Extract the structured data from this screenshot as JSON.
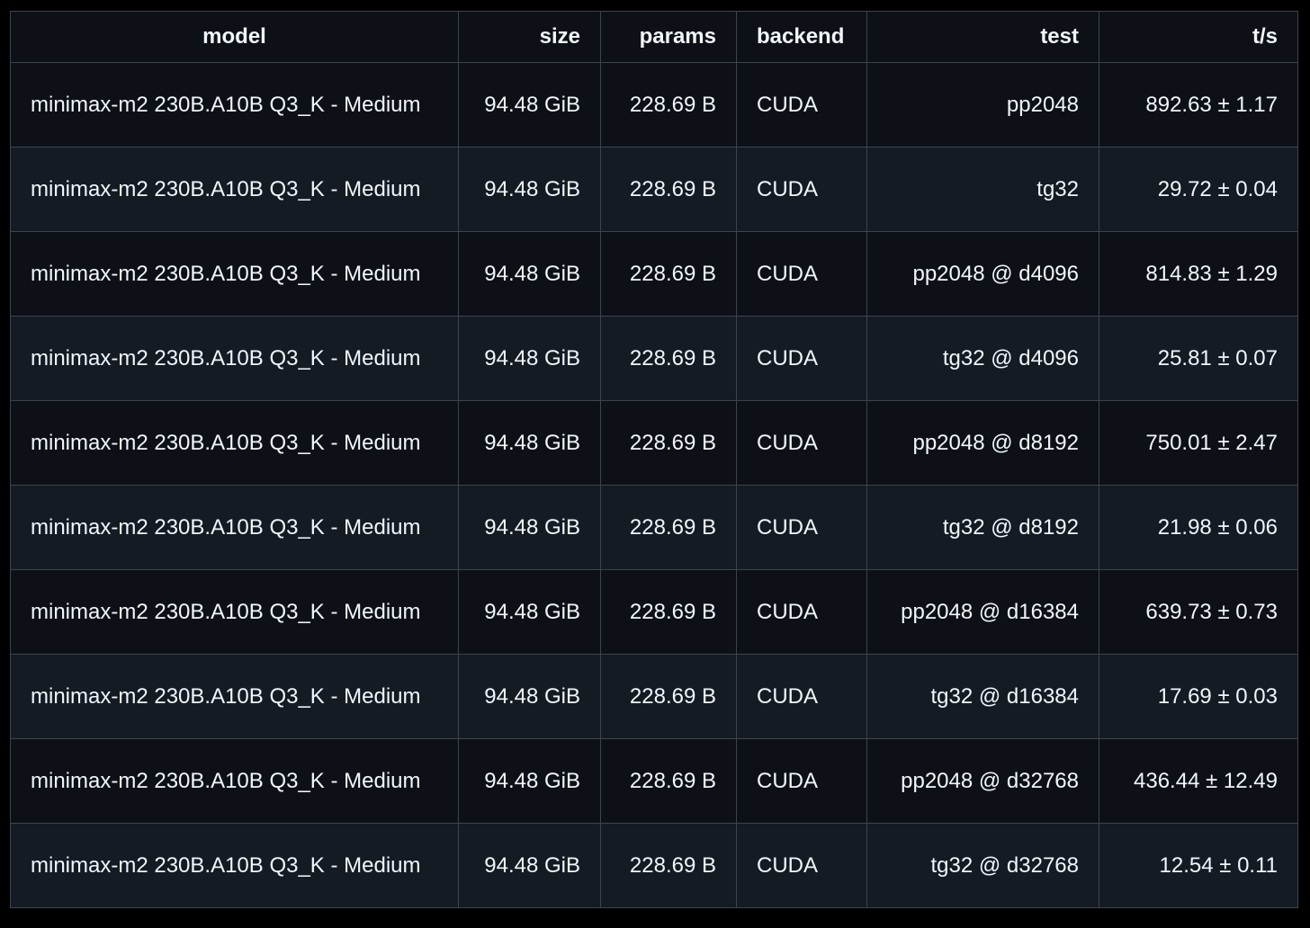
{
  "columns": [
    "model",
    "size",
    "params",
    "backend",
    "test",
    "t/s"
  ],
  "rows": [
    {
      "model": "minimax-m2 230B.A10B Q3_K - Medium",
      "size": "94.48 GiB",
      "params": "228.69 B",
      "backend": "CUDA",
      "test": "pp2048",
      "ts": "892.63 ± 1.17"
    },
    {
      "model": "minimax-m2 230B.A10B Q3_K - Medium",
      "size": "94.48 GiB",
      "params": "228.69 B",
      "backend": "CUDA",
      "test": "tg32",
      "ts": "29.72 ± 0.04"
    },
    {
      "model": "minimax-m2 230B.A10B Q3_K - Medium",
      "size": "94.48 GiB",
      "params": "228.69 B",
      "backend": "CUDA",
      "test": "pp2048 @ d4096",
      "ts": "814.83 ± 1.29"
    },
    {
      "model": "minimax-m2 230B.A10B Q3_K - Medium",
      "size": "94.48 GiB",
      "params": "228.69 B",
      "backend": "CUDA",
      "test": "tg32 @ d4096",
      "ts": "25.81 ± 0.07"
    },
    {
      "model": "minimax-m2 230B.A10B Q3_K - Medium",
      "size": "94.48 GiB",
      "params": "228.69 B",
      "backend": "CUDA",
      "test": "pp2048 @ d8192",
      "ts": "750.01 ± 2.47"
    },
    {
      "model": "minimax-m2 230B.A10B Q3_K - Medium",
      "size": "94.48 GiB",
      "params": "228.69 B",
      "backend": "CUDA",
      "test": "tg32 @ d8192",
      "ts": "21.98 ± 0.06"
    },
    {
      "model": "minimax-m2 230B.A10B Q3_K - Medium",
      "size": "94.48 GiB",
      "params": "228.69 B",
      "backend": "CUDA",
      "test": "pp2048 @ d16384",
      "ts": "639.73 ± 0.73"
    },
    {
      "model": "minimax-m2 230B.A10B Q3_K - Medium",
      "size": "94.48 GiB",
      "params": "228.69 B",
      "backend": "CUDA",
      "test": "tg32 @ d16384",
      "ts": "17.69 ± 0.03"
    },
    {
      "model": "minimax-m2 230B.A10B Q3_K - Medium",
      "size": "94.48 GiB",
      "params": "228.69 B",
      "backend": "CUDA",
      "test": "pp2048 @ d32768",
      "ts": "436.44 ± 12.49"
    },
    {
      "model": "minimax-m2 230B.A10B Q3_K - Medium",
      "size": "94.48 GiB",
      "params": "228.69 B",
      "backend": "CUDA",
      "test": "tg32 @ d32768",
      "ts": "12.54 ± 0.11"
    }
  ]
}
